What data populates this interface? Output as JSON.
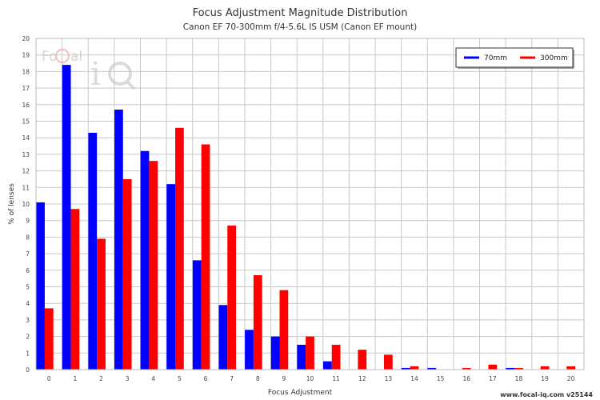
{
  "chart_data": {
    "type": "bar",
    "title": "Focus Adjustment Magnitude Distribution",
    "subtitle": "Canon EF 70-300mm f/4-5.6L IS USM (Canon EF mount)",
    "xlabel": "Focus Adjustment",
    "ylabel": "% of lenses",
    "ylim": [
      0,
      20
    ],
    "yticks": [
      0,
      1,
      2,
      3,
      4,
      5,
      6,
      7,
      8,
      9,
      10,
      11,
      12,
      13,
      14,
      15,
      16,
      17,
      18,
      19,
      20
    ],
    "categories": [
      "0",
      "1",
      "2",
      "3",
      "4",
      "5",
      "6",
      "7",
      "8",
      "9",
      "10",
      "11",
      "12",
      "13",
      "14",
      "15",
      "16",
      "17",
      "18",
      "19",
      "20"
    ],
    "series": [
      {
        "name": "70mm",
        "color": "#0000ff",
        "values": [
          10.1,
          18.4,
          14.3,
          15.7,
          13.2,
          11.2,
          6.6,
          3.9,
          2.4,
          2.0,
          1.5,
          0.5,
          0,
          0,
          0.1,
          0.1,
          0,
          0,
          0.1,
          0,
          0
        ]
      },
      {
        "name": "300mm",
        "color": "#ff0000",
        "values": [
          3.7,
          9.7,
          7.9,
          11.5,
          12.6,
          14.6,
          13.6,
          8.7,
          5.7,
          4.8,
          2.0,
          1.5,
          1.2,
          0.9,
          0.2,
          0,
          0.1,
          0.3,
          0.1,
          0.2,
          0.2
        ]
      }
    ],
    "grid": true,
    "legend_position": "top-right"
  },
  "watermark": {
    "text": "Focal iQ"
  },
  "footer": {
    "text": "www.focal-iq.com v25144"
  }
}
